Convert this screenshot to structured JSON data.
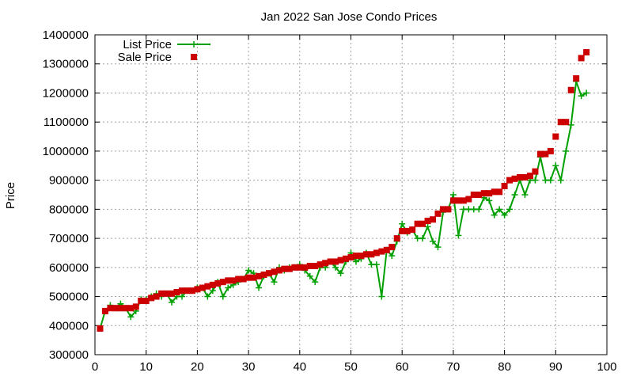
{
  "chart_data": {
    "type": "line",
    "title": "Jan 2022 San Jose Condo Prices",
    "xlabel": "",
    "ylabel": "Price",
    "xlim": [
      0,
      100
    ],
    "ylim": [
      300000,
      1400000
    ],
    "x_ticks": [
      "0",
      "10",
      "20",
      "30",
      "40",
      "50",
      "60",
      "70",
      "80",
      "90",
      "100"
    ],
    "y_ticks": [
      "300000",
      "400000",
      "500000",
      "600000",
      "700000",
      "800000",
      "900000",
      "1000000",
      "1100000",
      "1200000",
      "1300000",
      "1400000"
    ],
    "grid": true,
    "legend_position": "top-left",
    "series": [
      {
        "name": "List Price",
        "color": "#00a000",
        "style": "line-plus",
        "x": [
          1,
          2,
          3,
          4,
          5,
          6,
          7,
          8,
          9,
          10,
          11,
          12,
          13,
          14,
          15,
          16,
          17,
          18,
          19,
          20,
          21,
          22,
          23,
          24,
          25,
          26,
          27,
          28,
          29,
          30,
          31,
          32,
          33,
          34,
          35,
          36,
          37,
          38,
          39,
          40,
          41,
          42,
          43,
          44,
          45,
          46,
          47,
          48,
          49,
          50,
          51,
          52,
          53,
          54,
          55,
          56,
          57,
          58,
          59,
          60,
          61,
          62,
          63,
          64,
          65,
          66,
          67,
          68,
          69,
          70,
          71,
          72,
          73,
          74,
          75,
          76,
          77,
          78,
          79,
          80,
          81,
          82,
          83,
          84,
          85,
          86,
          87,
          88,
          89,
          90,
          91,
          92,
          93,
          94,
          95,
          96
        ],
        "values": [
          390000,
          450000,
          470000,
          460000,
          475000,
          460000,
          430000,
          450000,
          490000,
          490000,
          500000,
          510000,
          500000,
          510000,
          480000,
          500000,
          500000,
          520000,
          520000,
          530000,
          530000,
          500000,
          520000,
          550000,
          500000,
          530000,
          540000,
          550000,
          560000,
          590000,
          580000,
          530000,
          570000,
          580000,
          550000,
          600000,
          590000,
          600000,
          600000,
          610000,
          590000,
          570000,
          550000,
          600000,
          600000,
          620000,
          600000,
          580000,
          620000,
          650000,
          620000,
          630000,
          650000,
          610000,
          610000,
          500000,
          660000,
          640000,
          690000,
          750000,
          720000,
          730000,
          700000,
          700000,
          740000,
          690000,
          670000,
          790000,
          800000,
          850000,
          710000,
          800000,
          800000,
          800000,
          800000,
          840000,
          830000,
          780000,
          800000,
          780000,
          800000,
          850000,
          900000,
          850000,
          900000,
          900000,
          980000,
          900000,
          900000,
          950000,
          900000,
          1000000,
          1090000,
          1240000,
          1190000,
          1200000
        ]
      },
      {
        "name": "Sale Price",
        "color": "#cc0000",
        "style": "square",
        "x": [
          1,
          2,
          3,
          4,
          5,
          6,
          7,
          8,
          9,
          10,
          11,
          12,
          13,
          14,
          15,
          16,
          17,
          18,
          19,
          20,
          21,
          22,
          23,
          24,
          25,
          26,
          27,
          28,
          29,
          30,
          31,
          32,
          33,
          34,
          35,
          36,
          37,
          38,
          39,
          40,
          41,
          42,
          43,
          44,
          45,
          46,
          47,
          48,
          49,
          50,
          51,
          52,
          53,
          54,
          55,
          56,
          57,
          58,
          59,
          60,
          61,
          62,
          63,
          64,
          65,
          66,
          67,
          68,
          69,
          70,
          71,
          72,
          73,
          74,
          75,
          76,
          77,
          78,
          79,
          80,
          81,
          82,
          83,
          84,
          85,
          86,
          87,
          88,
          89,
          90,
          91,
          92,
          93,
          94,
          95,
          96
        ],
        "values": [
          390000,
          450000,
          460000,
          460000,
          460000,
          460000,
          460000,
          465000,
          485000,
          485000,
          495000,
          500000,
          510000,
          510000,
          510000,
          515000,
          520000,
          520000,
          520000,
          525000,
          530000,
          535000,
          540000,
          545000,
          550000,
          555000,
          555000,
          560000,
          560000,
          565000,
          565000,
          570000,
          575000,
          580000,
          585000,
          590000,
          595000,
          595000,
          600000,
          600000,
          600000,
          605000,
          605000,
          610000,
          615000,
          620000,
          620000,
          625000,
          630000,
          635000,
          640000,
          640000,
          645000,
          645000,
          650000,
          655000,
          660000,
          670000,
          700000,
          725000,
          725000,
          730000,
          750000,
          750000,
          760000,
          765000,
          785000,
          800000,
          800000,
          830000,
          830000,
          830000,
          835000,
          850000,
          850000,
          855000,
          855000,
          860000,
          860000,
          880000,
          900000,
          905000,
          910000,
          910000,
          915000,
          930000,
          990000,
          990000,
          1000000,
          1050000,
          1100000,
          1100000,
          1210000,
          1250000,
          1320000,
          1340000
        ]
      }
    ]
  }
}
